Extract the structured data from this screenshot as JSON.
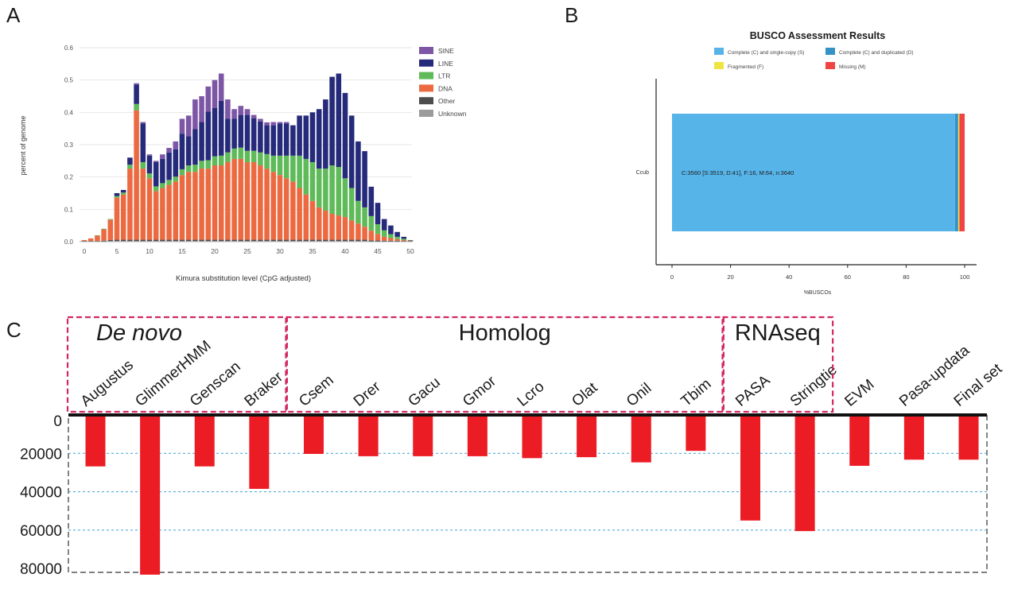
{
  "panels": {
    "a": "A",
    "b": "B",
    "c": "C"
  },
  "chart_data": [
    {
      "id": "A",
      "type": "bar",
      "stacked": true,
      "title": "",
      "xlabel": "Kimura substitution level (CpG adjusted)",
      "ylabel": "percent of genome",
      "xlim": [
        0,
        50
      ],
      "ylim": [
        0,
        0.6
      ],
      "xticks": [
        "0",
        "5",
        "10",
        "15",
        "20",
        "25",
        "30",
        "35",
        "40",
        "45",
        "50"
      ],
      "yticks": [
        "0.0",
        "0.1",
        "0.2",
        "0.3",
        "0.4",
        "0.5",
        "0.6"
      ],
      "grid": true,
      "legend": "right",
      "colors": {
        "Unknown": "#9b9b9b",
        "Other": "#4d4d4d",
        "DNA": "#ec6a41",
        "LTR": "#5fba5a",
        "LINE": "#262a7a",
        "SINE": "#7d56a5"
      },
      "x": [
        0,
        1,
        2,
        3,
        4,
        5,
        6,
        7,
        8,
        9,
        10,
        11,
        12,
        13,
        14,
        15,
        16,
        17,
        18,
        19,
        20,
        21,
        22,
        23,
        24,
        25,
        26,
        27,
        28,
        29,
        30,
        31,
        32,
        33,
        34,
        35,
        36,
        37,
        38,
        39,
        40,
        41,
        42,
        43,
        44,
        45,
        46,
        47,
        48,
        49,
        50
      ],
      "totals": [
        0.005,
        0.01,
        0.02,
        0.04,
        0.07,
        0.15,
        0.16,
        0.26,
        0.49,
        0.37,
        0.27,
        0.25,
        0.27,
        0.29,
        0.31,
        0.38,
        0.39,
        0.44,
        0.45,
        0.48,
        0.5,
        0.52,
        0.44,
        0.41,
        0.42,
        0.41,
        0.39,
        0.38,
        0.37,
        0.37,
        0.37,
        0.37,
        0.36,
        0.39,
        0.39,
        0.4,
        0.41,
        0.44,
        0.51,
        0.52,
        0.46,
        0.39,
        0.31,
        0.28,
        0.17,
        0.12,
        0.07,
        0.05,
        0.03,
        0.015,
        0.005
      ],
      "series": [
        {
          "name": "Unknown",
          "values": [
            0.001,
            0.001,
            0.001,
            0.001,
            0.002,
            0.002,
            0.002,
            0.002,
            0.002,
            0.002,
            0.002,
            0.002,
            0.002,
            0.002,
            0.002,
            0.002,
            0.002,
            0.002,
            0.002,
            0.002,
            0.002,
            0.002,
            0.002,
            0.002,
            0.002,
            0.002,
            0.002,
            0.002,
            0.002,
            0.002,
            0.002,
            0.002,
            0.002,
            0.002,
            0.002,
            0.002,
            0.002,
            0.002,
            0.002,
            0.002,
            0.002,
            0.002,
            0.002,
            0.002,
            0.001,
            0.001,
            0.001,
            0.001,
            0.001,
            0.001,
            0.001
          ]
        },
        {
          "name": "Other",
          "values": [
            0.001,
            0.001,
            0.001,
            0.002,
            0.003,
            0.004,
            0.004,
            0.004,
            0.004,
            0.004,
            0.004,
            0.004,
            0.004,
            0.004,
            0.004,
            0.004,
            0.004,
            0.004,
            0.004,
            0.004,
            0.004,
            0.004,
            0.004,
            0.004,
            0.004,
            0.004,
            0.004,
            0.004,
            0.004,
            0.004,
            0.004,
            0.004,
            0.004,
            0.004,
            0.004,
            0.004,
            0.004,
            0.004,
            0.004,
            0.004,
            0.004,
            0.004,
            0.004,
            0.004,
            0.003,
            0.003,
            0.002,
            0.002,
            0.002,
            0.001,
            0.001
          ]
        },
        {
          "name": "DNA",
          "values": [
            0.003,
            0.008,
            0.017,
            0.035,
            0.063,
            0.13,
            0.14,
            0.22,
            0.4,
            0.22,
            0.19,
            0.15,
            0.16,
            0.17,
            0.18,
            0.2,
            0.21,
            0.21,
            0.22,
            0.22,
            0.23,
            0.23,
            0.24,
            0.25,
            0.25,
            0.24,
            0.24,
            0.23,
            0.22,
            0.21,
            0.2,
            0.19,
            0.18,
            0.16,
            0.14,
            0.12,
            0.1,
            0.09,
            0.08,
            0.075,
            0.07,
            0.06,
            0.05,
            0.04,
            0.03,
            0.02,
            0.012,
            0.008,
            0.005,
            0.003,
            0.001
          ]
        },
        {
          "name": "LTR",
          "values": [
            0.0,
            0.0,
            0.001,
            0.002,
            0.002,
            0.005,
            0.006,
            0.012,
            0.02,
            0.02,
            0.015,
            0.015,
            0.015,
            0.015,
            0.015,
            0.018,
            0.02,
            0.022,
            0.024,
            0.026,
            0.028,
            0.03,
            0.03,
            0.032,
            0.035,
            0.035,
            0.035,
            0.04,
            0.045,
            0.05,
            0.06,
            0.07,
            0.08,
            0.1,
            0.11,
            0.12,
            0.12,
            0.13,
            0.15,
            0.15,
            0.12,
            0.1,
            0.07,
            0.06,
            0.045,
            0.03,
            0.02,
            0.012,
            0.007,
            0.004,
            0.001
          ]
        },
        {
          "name": "LINE",
          "values": [
            0.0,
            0.0,
            0.0,
            0.0,
            0.0,
            0.009,
            0.008,
            0.022,
            0.06,
            0.12,
            0.055,
            0.075,
            0.075,
            0.085,
            0.085,
            0.11,
            0.09,
            0.11,
            0.12,
            0.15,
            0.15,
            0.17,
            0.104,
            0.092,
            0.101,
            0.111,
            0.101,
            0.096,
            0.089,
            0.094,
            0.1,
            0.1,
            0.094,
            0.124,
            0.134,
            0.154,
            0.184,
            0.214,
            0.274,
            0.289,
            0.264,
            0.224,
            0.184,
            0.174,
            0.091,
            0.066,
            0.035,
            0.027,
            0.015,
            0.006,
            0.001
          ]
        },
        {
          "name": "SINE",
          "values": [
            0.0,
            0.0,
            0.0,
            0.0,
            0.0,
            0.0,
            0.0,
            0.0,
            0.004,
            0.004,
            0.004,
            0.004,
            0.014,
            0.014,
            0.024,
            0.046,
            0.064,
            0.092,
            0.08,
            0.078,
            0.086,
            0.084,
            0.06,
            0.03,
            0.028,
            0.018,
            0.01,
            0.008,
            0.009,
            0.01,
            0.004,
            0.004,
            0.0,
            0.0,
            0.0,
            0.0,
            0.0,
            0.0,
            0.0,
            0.0,
            0.0,
            0.0,
            0.0,
            0.0,
            0.0,
            0.0,
            0.0,
            0.0,
            0.0,
            0.0,
            0.0
          ]
        }
      ],
      "legend_order": [
        "SINE",
        "LINE",
        "LTR",
        "DNA",
        "Other",
        "Unknown"
      ]
    },
    {
      "id": "B",
      "type": "bar",
      "orientation": "horizontal",
      "stacked": true,
      "title": "BUSCO Assessment Results",
      "xlabel": "%BUSCOs",
      "ylabel": "",
      "categories": [
        "Ccub"
      ],
      "xlim": [
        0,
        100
      ],
      "xticks": [
        "0",
        "20",
        "40",
        "60",
        "80",
        "100"
      ],
      "annotation": "C:3560 [S:3519, D:41], F:16, M:64, n:3640",
      "legend": "top",
      "legend_entries": [
        "Complete (C) and single-copy (S)",
        "Complete (C) and duplicated (D)",
        "Fragmented (F)",
        "Missing (M)"
      ],
      "series": [
        {
          "label": "Complete (C) and single-copy (S)",
          "value": 96.7,
          "color": "#56b4e9"
        },
        {
          "label": "Complete (C) and duplicated (D)",
          "value": 1.1,
          "color": "#3492c7"
        },
        {
          "label": "Fragmented (F)",
          "value": 0.4,
          "color": "#f0e442"
        },
        {
          "label": "Missing (M)",
          "value": 1.8,
          "color": "#f04442"
        }
      ]
    },
    {
      "id": "C",
      "type": "bar",
      "orientation": "downward",
      "title": "",
      "categories": [
        "Augustus",
        "GlimmerHMM",
        "Genscan",
        "Braker",
        "Csem",
        "Drer",
        "Gacu",
        "Gmor",
        "Lcro",
        "Olat",
        "Onil",
        "Tbim",
        "PASA",
        "Stringtie",
        "EVM",
        "Pasa-updata",
        "Final set"
      ],
      "values": [
        26800,
        83200,
        26800,
        38500,
        20300,
        21500,
        21500,
        21500,
        22500,
        22000,
        24700,
        18700,
        55000,
        60500,
        26500,
        23300,
        23300
      ],
      "ylim": [
        0,
        80000
      ],
      "yticks": [
        "0",
        "20000",
        "40000",
        "60000",
        "80000"
      ],
      "grid": true,
      "bar_color": "#ec1c24",
      "groups": [
        {
          "label": "De novo",
          "italic": true,
          "first": 0,
          "last": 3
        },
        {
          "label": "Homolog",
          "italic": false,
          "first": 4,
          "last": 11
        },
        {
          "label": "RNAseq",
          "italic": false,
          "first": 12,
          "last": 13
        }
      ]
    }
  ]
}
